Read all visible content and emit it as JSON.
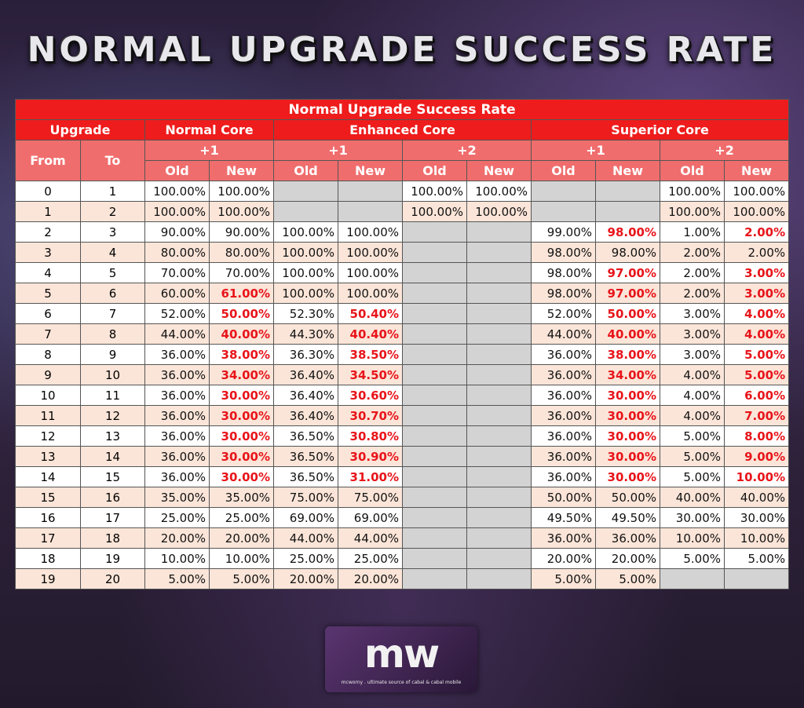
{
  "page": {
    "title": "NORMAL UPGRADE SUCCESS RATE"
  },
  "table": {
    "caption": "Normal Upgrade Success Rate",
    "header": {
      "upgrade": "Upgrade",
      "from": "From",
      "to": "To",
      "normal_core": "Normal Core",
      "enhanced_core": "Enhanced Core",
      "superior_core": "Superior Core",
      "plus1": "+1",
      "plus2": "+2",
      "old": "Old",
      "new": "New"
    },
    "rows": [
      {
        "from": "0",
        "to": "1",
        "n1o": "100.00%",
        "n1n": "100.00%",
        "e1o": "",
        "e1n": "",
        "e2o": "100.00%",
        "e2n": "100.00%",
        "s1o": "",
        "s1n": "",
        "s2o": "100.00%",
        "s2n": "100.00%"
      },
      {
        "from": "1",
        "to": "2",
        "n1o": "100.00%",
        "n1n": "100.00%",
        "e1o": "",
        "e1n": "",
        "e2o": "100.00%",
        "e2n": "100.00%",
        "s1o": "",
        "s1n": "",
        "s2o": "100.00%",
        "s2n": "100.00%"
      },
      {
        "from": "2",
        "to": "3",
        "n1o": "90.00%",
        "n1n": "90.00%",
        "e1o": "100.00%",
        "e1n": "100.00%",
        "e2o": "",
        "e2n": "",
        "s1o": "99.00%",
        "s1n": "98.00%",
        "s2o": "1.00%",
        "s2n": "2.00%"
      },
      {
        "from": "3",
        "to": "4",
        "n1o": "80.00%",
        "n1n": "80.00%",
        "e1o": "100.00%",
        "e1n": "100.00%",
        "e2o": "",
        "e2n": "",
        "s1o": "98.00%",
        "s1n": "98.00%",
        "s2o": "2.00%",
        "s2n": "2.00%"
      },
      {
        "from": "4",
        "to": "5",
        "n1o": "70.00%",
        "n1n": "70.00%",
        "e1o": "100.00%",
        "e1n": "100.00%",
        "e2o": "",
        "e2n": "",
        "s1o": "98.00%",
        "s1n": "97.00%",
        "s2o": "2.00%",
        "s2n": "3.00%"
      },
      {
        "from": "5",
        "to": "6",
        "n1o": "60.00%",
        "n1n": "61.00%",
        "e1o": "100.00%",
        "e1n": "100.00%",
        "e2o": "",
        "e2n": "",
        "s1o": "98.00%",
        "s1n": "97.00%",
        "s2o": "2.00%",
        "s2n": "3.00%"
      },
      {
        "from": "6",
        "to": "7",
        "n1o": "52.00%",
        "n1n": "50.00%",
        "e1o": "52.30%",
        "e1n": "50.40%",
        "e2o": "",
        "e2n": "",
        "s1o": "52.00%",
        "s1n": "50.00%",
        "s2o": "3.00%",
        "s2n": "4.00%"
      },
      {
        "from": "7",
        "to": "8",
        "n1o": "44.00%",
        "n1n": "40.00%",
        "e1o": "44.30%",
        "e1n": "40.40%",
        "e2o": "",
        "e2n": "",
        "s1o": "44.00%",
        "s1n": "40.00%",
        "s2o": "3.00%",
        "s2n": "4.00%"
      },
      {
        "from": "8",
        "to": "9",
        "n1o": "36.00%",
        "n1n": "38.00%",
        "e1o": "36.30%",
        "e1n": "38.50%",
        "e2o": "",
        "e2n": "",
        "s1o": "36.00%",
        "s1n": "38.00%",
        "s2o": "3.00%",
        "s2n": "5.00%"
      },
      {
        "from": "9",
        "to": "10",
        "n1o": "36.00%",
        "n1n": "34.00%",
        "e1o": "36.40%",
        "e1n": "34.50%",
        "e2o": "",
        "e2n": "",
        "s1o": "36.00%",
        "s1n": "34.00%",
        "s2o": "4.00%",
        "s2n": "5.00%"
      },
      {
        "from": "10",
        "to": "11",
        "n1o": "36.00%",
        "n1n": "30.00%",
        "e1o": "36.40%",
        "e1n": "30.60%",
        "e2o": "",
        "e2n": "",
        "s1o": "36.00%",
        "s1n": "30.00%",
        "s2o": "4.00%",
        "s2n": "6.00%"
      },
      {
        "from": "11",
        "to": "12",
        "n1o": "36.00%",
        "n1n": "30.00%",
        "e1o": "36.40%",
        "e1n": "30.70%",
        "e2o": "",
        "e2n": "",
        "s1o": "36.00%",
        "s1n": "30.00%",
        "s2o": "4.00%",
        "s2n": "7.00%"
      },
      {
        "from": "12",
        "to": "13",
        "n1o": "36.00%",
        "n1n": "30.00%",
        "e1o": "36.50%",
        "e1n": "30.80%",
        "e2o": "",
        "e2n": "",
        "s1o": "36.00%",
        "s1n": "30.00%",
        "s2o": "5.00%",
        "s2n": "8.00%"
      },
      {
        "from": "13",
        "to": "14",
        "n1o": "36.00%",
        "n1n": "30.00%",
        "e1o": "36.50%",
        "e1n": "30.90%",
        "e2o": "",
        "e2n": "",
        "s1o": "36.00%",
        "s1n": "30.00%",
        "s2o": "5.00%",
        "s2n": "9.00%"
      },
      {
        "from": "14",
        "to": "15",
        "n1o": "36.00%",
        "n1n": "30.00%",
        "e1o": "36.50%",
        "e1n": "31.00%",
        "e2o": "",
        "e2n": "",
        "s1o": "36.00%",
        "s1n": "30.00%",
        "s2o": "5.00%",
        "s2n": "10.00%"
      },
      {
        "from": "15",
        "to": "16",
        "n1o": "35.00%",
        "n1n": "35.00%",
        "e1o": "75.00%",
        "e1n": "75.00%",
        "e2o": "",
        "e2n": "",
        "s1o": "50.00%",
        "s1n": "50.00%",
        "s2o": "40.00%",
        "s2n": "40.00%"
      },
      {
        "from": "16",
        "to": "17",
        "n1o": "25.00%",
        "n1n": "25.00%",
        "e1o": "69.00%",
        "e1n": "69.00%",
        "e2o": "",
        "e2n": "",
        "s1o": "49.50%",
        "s1n": "49.50%",
        "s2o": "30.00%",
        "s2n": "30.00%"
      },
      {
        "from": "17",
        "to": "18",
        "n1o": "20.00%",
        "n1n": "20.00%",
        "e1o": "44.00%",
        "e1n": "44.00%",
        "e2o": "",
        "e2n": "",
        "s1o": "36.00%",
        "s1n": "36.00%",
        "s2o": "10.00%",
        "s2n": "10.00%"
      },
      {
        "from": "18",
        "to": "19",
        "n1o": "10.00%",
        "n1n": "10.00%",
        "e1o": "25.00%",
        "e1n": "25.00%",
        "e2o": "",
        "e2n": "",
        "s1o": "20.00%",
        "s1n": "20.00%",
        "s2o": "5.00%",
        "s2n": "5.00%"
      },
      {
        "from": "19",
        "to": "20",
        "n1o": "5.00%",
        "n1n": "5.00%",
        "e1o": "20.00%",
        "e1n": "20.00%",
        "e2o": "",
        "e2n": "",
        "s1o": "5.00%",
        "s1n": "5.00%",
        "s2o": "",
        "s2n": ""
      }
    ],
    "highlighted": {
      "n1n": [
        "5",
        "6",
        "7",
        "8",
        "9",
        "10",
        "11",
        "12",
        "13",
        "14"
      ],
      "e1n": [
        "6",
        "7",
        "8",
        "9",
        "10",
        "11",
        "12",
        "13",
        "14"
      ],
      "s1n": [
        "2",
        "4",
        "5",
        "6",
        "7",
        "8",
        "9",
        "10",
        "11",
        "12",
        "13",
        "14"
      ],
      "s2n": [
        "2",
        "4",
        "5",
        "6",
        "7",
        "8",
        "9",
        "10",
        "11",
        "12",
        "13",
        "14"
      ]
    }
  },
  "logo": {
    "mark": "mw",
    "tagline": "mcworny . ultimate source of cabal & cabal mobile"
  },
  "colors": {
    "header_red": "#ee1c1c",
    "subheader_pink": "#f06d6d",
    "row_alt": "#fbe5d8",
    "empty_gray": "#d3d3d3",
    "highlight_red": "#e8141a"
  }
}
